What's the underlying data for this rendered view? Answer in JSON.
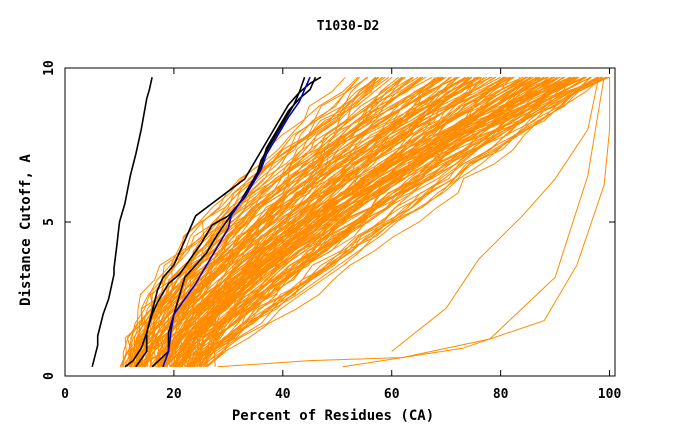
{
  "chart_data": {
    "type": "line",
    "title": "T1030-D2",
    "xlabel": "Percent of Residues (CA)",
    "ylabel": "Distance Cutoff, A",
    "xlim": [
      0,
      101
    ],
    "ylim": [
      0,
      10
    ],
    "xticks": [
      "0",
      "20",
      "40",
      "60",
      "80",
      "100"
    ],
    "yticks": [
      "0",
      "5",
      "10"
    ],
    "grid": false,
    "legend": "none",
    "colors": {
      "models": "#ff8c00",
      "reference": "#000000",
      "highlight": "#0000cc",
      "axes": "#000000"
    },
    "series": [
      {
        "role": "reference",
        "color": "#000000",
        "points": [
          [
            5,
            0.3
          ],
          [
            6,
            1
          ],
          [
            6,
            1.3
          ],
          [
            7,
            2
          ],
          [
            8,
            2.5
          ],
          [
            9,
            3.3
          ],
          [
            9,
            3.5
          ],
          [
            9.5,
            4.2
          ],
          [
            10,
            5
          ],
          [
            11,
            5.6
          ],
          [
            12,
            6.5
          ],
          [
            13,
            7.2
          ],
          [
            14,
            8
          ],
          [
            15,
            9
          ],
          [
            15.5,
            9.3
          ],
          [
            16,
            9.7
          ]
        ]
      },
      {
        "role": "reference",
        "color": "#000000",
        "points": [
          [
            11,
            0.3
          ],
          [
            12.5,
            0.5
          ],
          [
            14,
            0.9
          ],
          [
            15,
            1.4
          ],
          [
            16,
            2.1
          ],
          [
            17,
            2.8
          ],
          [
            18,
            3.2
          ],
          [
            20,
            3.6
          ],
          [
            22,
            4.4
          ],
          [
            24,
            5.2
          ],
          [
            27,
            5.6
          ],
          [
            30,
            6.0
          ],
          [
            33,
            6.4
          ],
          [
            35,
            7.0
          ],
          [
            37,
            7.6
          ],
          [
            39,
            8.2
          ],
          [
            41,
            8.8
          ],
          [
            43,
            9.2
          ],
          [
            45,
            9.5
          ],
          [
            47,
            9.7
          ]
        ]
      },
      {
        "role": "reference",
        "color": "#000000",
        "points": [
          [
            13,
            0.3
          ],
          [
            15,
            0.8
          ],
          [
            15,
            1.4
          ],
          [
            16,
            2.0
          ],
          [
            17,
            2.4
          ],
          [
            19,
            3.0
          ],
          [
            21,
            3.3
          ],
          [
            23,
            3.8
          ],
          [
            25,
            4.3
          ],
          [
            27,
            4.9
          ],
          [
            30,
            5.2
          ],
          [
            33,
            5.8
          ],
          [
            35,
            6.4
          ],
          [
            36,
            7.0
          ],
          [
            38,
            7.6
          ],
          [
            40,
            8.2
          ],
          [
            42,
            8.8
          ],
          [
            43,
            9.2
          ],
          [
            44,
            9.7
          ]
        ]
      },
      {
        "role": "reference",
        "color": "#000000",
        "points": [
          [
            16,
            0.3
          ],
          [
            19,
            0.8
          ],
          [
            19,
            1.4
          ],
          [
            20,
            2.0
          ],
          [
            21,
            2.6
          ],
          [
            22,
            3.2
          ],
          [
            24,
            3.6
          ],
          [
            26,
            4.0
          ],
          [
            28,
            4.6
          ],
          [
            30,
            5.1
          ],
          [
            32,
            5.6
          ],
          [
            34,
            6.2
          ],
          [
            36,
            6.8
          ],
          [
            37,
            7.4
          ],
          [
            39,
            8.0
          ],
          [
            41,
            8.6
          ],
          [
            43,
            9.0
          ],
          [
            45,
            9.3
          ],
          [
            46,
            9.7
          ]
        ]
      },
      {
        "role": "highlight",
        "color": "#0000cc",
        "points": [
          [
            18,
            0.3
          ],
          [
            19,
            0.8
          ],
          [
            19.5,
            1.5
          ],
          [
            20,
            2.0
          ],
          [
            22,
            2.5
          ],
          [
            24,
            3.0
          ],
          [
            26,
            3.6
          ],
          [
            28,
            4.2
          ],
          [
            30,
            4.8
          ],
          [
            30.5,
            5.2
          ],
          [
            32,
            5.6
          ],
          [
            34,
            6.1
          ],
          [
            36,
            6.7
          ],
          [
            37,
            7.2
          ],
          [
            39,
            7.8
          ],
          [
            41,
            8.4
          ],
          [
            43,
            8.9
          ],
          [
            44,
            9.3
          ],
          [
            45,
            9.7
          ]
        ]
      }
    ]
  }
}
